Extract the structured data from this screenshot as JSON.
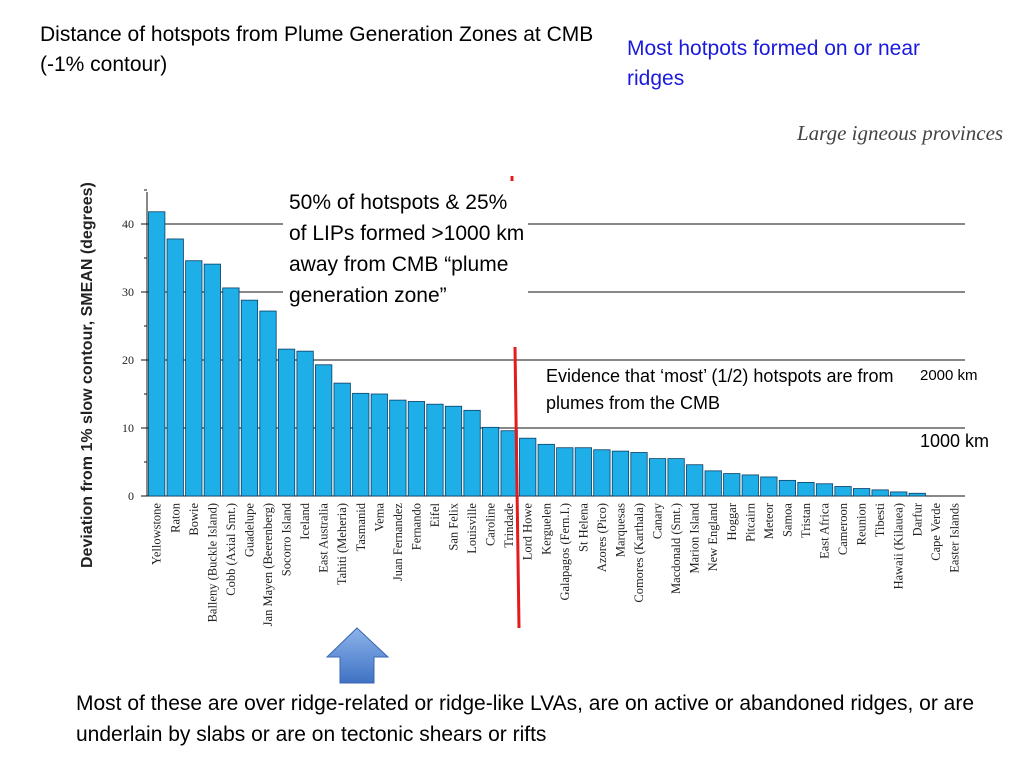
{
  "slide": {
    "title": "Distance of hotspots from Plume Generation Zones at CMB (-1% contour)",
    "note_ridges": "Most hotpots formed on or near ridges",
    "lip_label": "Large igneous provinces",
    "callout": "50% of hotspots & 25% of LIPs formed >1000 km away from CMB “plume generation zone”",
    "evidence": "Evidence that ‘most’ (1/2) hotspots are from plumes from the CMB",
    "km_2000": "2000 km",
    "km_1000": "1000 km",
    "bottom_note": "Most of these are over ridge-related or ridge-like LVAs, are on active or abandoned ridges, or are underlain by slabs or are on tectonic shears or rifts"
  },
  "colors": {
    "bar_fill": "#1eaee8",
    "bar_stroke": "#0c3f66",
    "divider": "#e31b1b",
    "arrow": "#5b8fd6",
    "link_text": "#1a1adc"
  },
  "chart_data": {
    "type": "bar",
    "title": "",
    "xlabel": "",
    "ylabel": "Deviation from 1% slow contour, SMEAN (degrees)",
    "ylim": [
      0,
      45
    ],
    "yticks": [
      0,
      10,
      20,
      30,
      40
    ],
    "reference_lines": [
      10,
      20,
      30,
      40
    ],
    "categories": [
      "Yellowstone",
      "Raton",
      "Bowie",
      "Balleny (Buckle Island)",
      "Cobb (Axial Smt.)",
      "Guadelupe",
      "Jan Mayen (Beerenberg)",
      "Socorro Island",
      "Iceland",
      "East Australia",
      "Tahiti (Meheria)",
      "Tasmanid",
      "Vema",
      "Juan Fernandez",
      "Fernando",
      "Eifel",
      "San Felix",
      "Louisville",
      "Caroline",
      "Trindade",
      "Lord Howe",
      "Kerguelen",
      "Galapagos (Fern.I.)",
      "St Helena",
      "Azores (Pico)",
      "Marquesas",
      "Comores (Karthala)",
      "Canary",
      "Macdonald (Smt.)",
      "Marion Island",
      "New England",
      "Hoggar",
      "Pitcairn",
      "Meteor",
      "Samoa",
      "Tristan",
      "East Africa",
      "Cameroon",
      "Reunion",
      "Tibesti",
      "Hawaii (Kilauea)",
      "Darfur",
      "Cape Verde",
      "Easter Islands"
    ],
    "values": [
      41.8,
      37.8,
      34.6,
      34.1,
      30.6,
      28.8,
      27.2,
      21.6,
      21.3,
      19.3,
      16.6,
      15.1,
      15.0,
      14.1,
      13.9,
      13.5,
      13.2,
      12.6,
      10.1,
      9.6,
      8.5,
      7.6,
      7.1,
      7.1,
      6.8,
      6.6,
      6.4,
      5.5,
      5.5,
      4.6,
      3.7,
      3.3,
      3.1,
      2.8,
      2.3,
      2.0,
      1.8,
      1.4,
      1.1,
      0.9,
      0.6,
      0.4,
      0.0,
      0.0
    ]
  }
}
